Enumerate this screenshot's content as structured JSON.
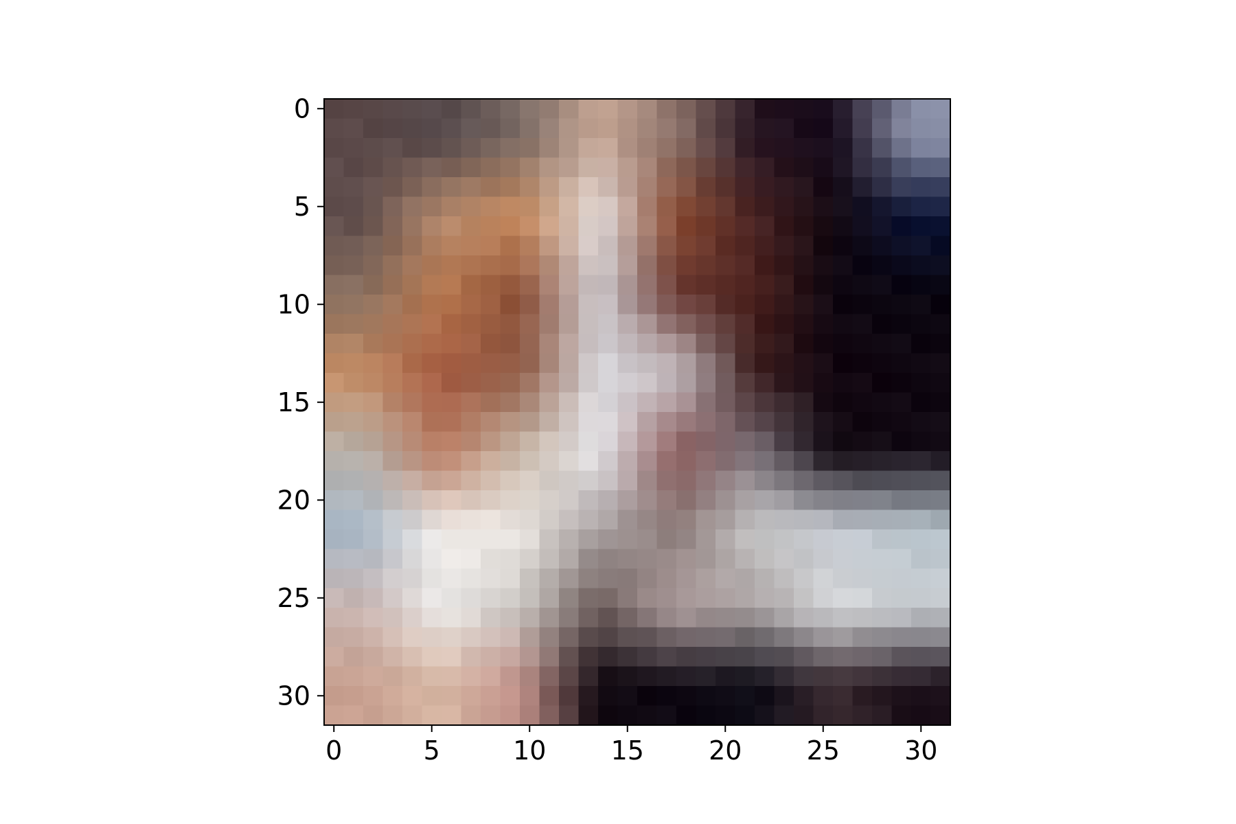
{
  "plot": {
    "x_ticks": [
      "0",
      "5",
      "10",
      "15",
      "20",
      "25",
      "30"
    ],
    "y_ticks": [
      "0",
      "5",
      "10",
      "15",
      "20",
      "25",
      "30"
    ]
  },
  "image": {
    "description_hint": "32x32 pixelated low-resolution photo of a brown and white beagle dog with dark background",
    "colors": {
      "background_left_top": "#5a4a48",
      "ear_brown": "#9a5a3a",
      "face_white": "#e6e6e8",
      "dark_background": "#120812",
      "navy_corner": "#0a1a40",
      "blue_patch": "#7aa0c8",
      "skin_pink": "#d8a898"
    }
  }
}
